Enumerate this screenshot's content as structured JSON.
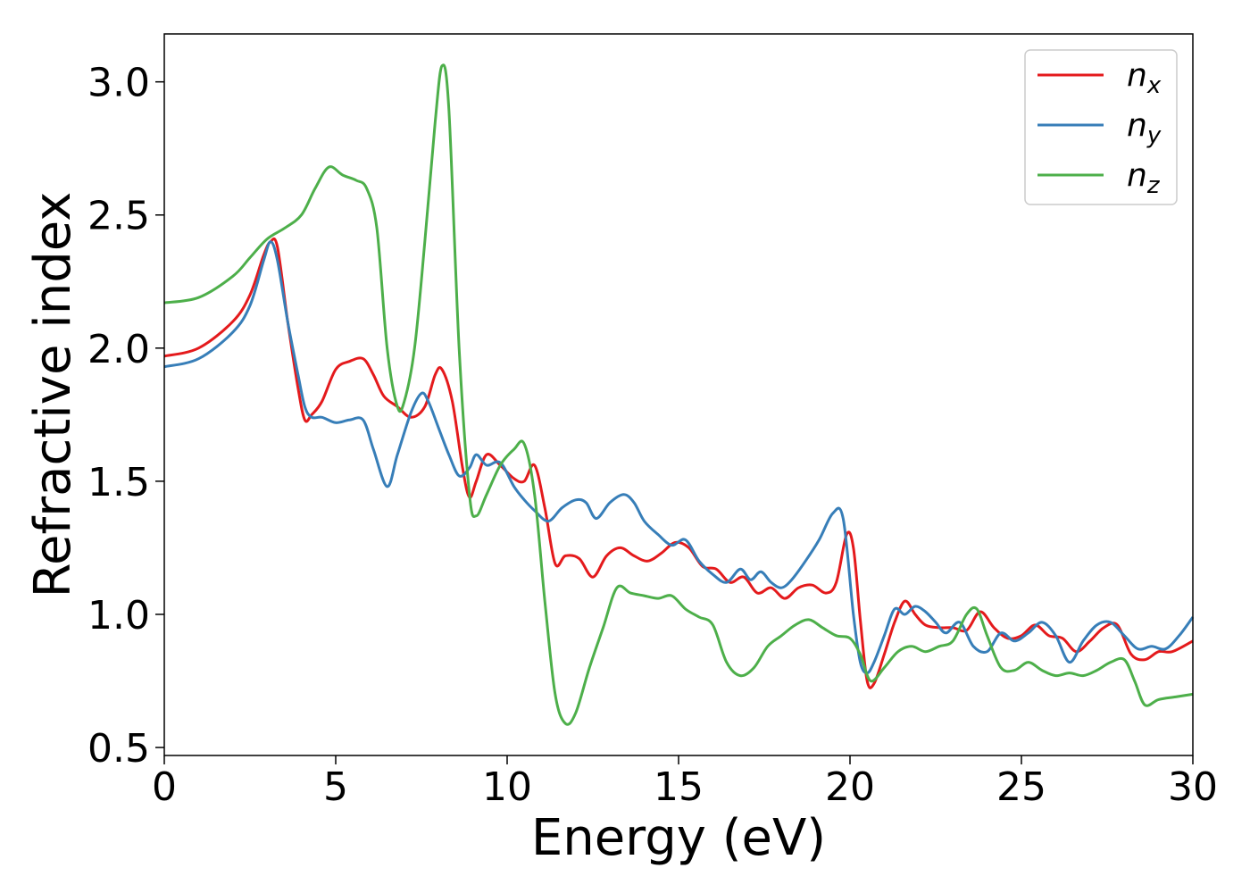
{
  "chart_data": {
    "type": "line",
    "title": "",
    "xlabel": "Energy (eV)",
    "ylabel": "Refractive index",
    "xlim": [
      0,
      30
    ],
    "ylim": [
      0.47,
      3.18
    ],
    "xticks": [
      0,
      5,
      10,
      15,
      20,
      25,
      30
    ],
    "yticks": [
      0.5,
      1.0,
      1.5,
      2.0,
      2.5,
      3.0
    ],
    "xtick_labels": [
      "0",
      "5",
      "10",
      "15",
      "20",
      "25",
      "30"
    ],
    "ytick_labels": [
      "0.5",
      "1.0",
      "1.5",
      "2.0",
      "2.5",
      "3.0"
    ],
    "grid": false,
    "legend": "top-right",
    "series": [
      {
        "name": "n",
        "subscript": "x",
        "color": "#e41a1c",
        "x": [
          0,
          1,
          2,
          2.5,
          2.9,
          3.1,
          3.3,
          3.6,
          3.9,
          4.1,
          4.3,
          4.6,
          5.0,
          5.4,
          5.8,
          6.1,
          6.4,
          6.8,
          7.2,
          7.6,
          7.9,
          8.1,
          8.4,
          8.7,
          8.9,
          9.1,
          9.4,
          9.8,
          10.2,
          10.5,
          10.8,
          11.1,
          11.4,
          11.7,
          12.1,
          12.5,
          12.9,
          13.3,
          13.7,
          14.1,
          14.5,
          14.9,
          15.3,
          15.7,
          16.1,
          16.5,
          16.9,
          17.3,
          17.7,
          18.1,
          18.5,
          18.9,
          19.3,
          19.6,
          19.9,
          20.1,
          20.3,
          20.5,
          20.7,
          21.0,
          21.3,
          21.6,
          21.9,
          22.2,
          22.6,
          23.0,
          23.4,
          23.8,
          24.2,
          24.6,
          25.0,
          25.4,
          25.8,
          26.2,
          26.6,
          27.0,
          27.4,
          27.8,
          28.2,
          28.6,
          29.0,
          29.4,
          30.0
        ],
        "y": [
          1.97,
          2.0,
          2.1,
          2.2,
          2.35,
          2.4,
          2.38,
          2.1,
          1.85,
          1.73,
          1.75,
          1.8,
          1.92,
          1.95,
          1.96,
          1.9,
          1.82,
          1.78,
          1.74,
          1.78,
          1.9,
          1.92,
          1.8,
          1.55,
          1.44,
          1.5,
          1.6,
          1.56,
          1.51,
          1.5,
          1.56,
          1.4,
          1.19,
          1.22,
          1.21,
          1.14,
          1.22,
          1.25,
          1.22,
          1.2,
          1.23,
          1.27,
          1.25,
          1.18,
          1.17,
          1.12,
          1.14,
          1.08,
          1.1,
          1.06,
          1.1,
          1.11,
          1.08,
          1.12,
          1.3,
          1.25,
          0.98,
          0.75,
          0.74,
          0.85,
          0.97,
          1.05,
          1.0,
          0.96,
          0.95,
          0.95,
          0.94,
          1.01,
          0.95,
          0.91,
          0.92,
          0.96,
          0.92,
          0.91,
          0.86,
          0.9,
          0.95,
          0.96,
          0.85,
          0.83,
          0.86,
          0.86,
          0.9
        ]
      },
      {
        "name": "n",
        "subscript": "y",
        "color": "#377eb8",
        "x": [
          0,
          1,
          2,
          2.5,
          2.9,
          3.1,
          3.3,
          3.6,
          3.9,
          4.1,
          4.3,
          4.6,
          5.0,
          5.4,
          5.8,
          6.1,
          6.5,
          6.8,
          7.2,
          7.5,
          7.7,
          8.0,
          8.3,
          8.6,
          8.9,
          9.1,
          9.4,
          9.8,
          10.2,
          10.5,
          10.8,
          11.2,
          11.6,
          12.0,
          12.3,
          12.6,
          13.0,
          13.4,
          13.7,
          14.0,
          14.4,
          14.8,
          15.2,
          15.6,
          16.0,
          16.4,
          16.8,
          17.1,
          17.4,
          17.7,
          18.0,
          18.3,
          18.7,
          19.1,
          19.5,
          19.8,
          20.1,
          20.3,
          20.5,
          20.7,
          21.0,
          21.3,
          21.6,
          21.9,
          22.2,
          22.5,
          22.8,
          23.2,
          23.6,
          24.0,
          24.4,
          24.8,
          25.2,
          25.6,
          26.0,
          26.4,
          26.8,
          27.2,
          27.6,
          28.0,
          28.4,
          28.8,
          29.2,
          29.6,
          30.0
        ],
        "y": [
          1.93,
          1.96,
          2.06,
          2.16,
          2.33,
          2.4,
          2.33,
          2.1,
          1.9,
          1.78,
          1.74,
          1.74,
          1.72,
          1.73,
          1.73,
          1.62,
          1.48,
          1.6,
          1.76,
          1.83,
          1.8,
          1.7,
          1.6,
          1.52,
          1.55,
          1.6,
          1.56,
          1.57,
          1.48,
          1.43,
          1.39,
          1.35,
          1.4,
          1.43,
          1.42,
          1.36,
          1.42,
          1.45,
          1.42,
          1.35,
          1.3,
          1.26,
          1.28,
          1.2,
          1.15,
          1.12,
          1.17,
          1.13,
          1.16,
          1.12,
          1.1,
          1.13,
          1.2,
          1.28,
          1.38,
          1.36,
          1.0,
          0.82,
          0.78,
          0.82,
          0.92,
          1.02,
          1.0,
          1.03,
          1.01,
          0.97,
          0.93,
          0.97,
          0.88,
          0.86,
          0.93,
          0.9,
          0.93,
          0.97,
          0.92,
          0.82,
          0.9,
          0.96,
          0.97,
          0.92,
          0.87,
          0.88,
          0.87,
          0.92,
          0.99
        ]
      },
      {
        "name": "n",
        "subscript": "z",
        "color": "#4daf4a",
        "x": [
          0,
          1,
          2,
          2.5,
          3.0,
          3.5,
          4.0,
          4.4,
          4.8,
          5.2,
          5.6,
          5.9,
          6.2,
          6.5,
          6.8,
          7.0,
          7.3,
          7.6,
          7.9,
          8.1,
          8.3,
          8.6,
          8.9,
          9.1,
          9.4,
          9.8,
          10.2,
          10.5,
          10.8,
          11.1,
          11.4,
          11.7,
          12.0,
          12.4,
          12.8,
          13.2,
          13.6,
          14.0,
          14.4,
          14.8,
          15.2,
          15.6,
          16.0,
          16.4,
          16.8,
          17.2,
          17.6,
          18.0,
          18.4,
          18.8,
          19.2,
          19.6,
          20.0,
          20.3,
          20.6,
          21.0,
          21.4,
          21.8,
          22.2,
          22.6,
          23.0,
          23.4,
          23.7,
          24.0,
          24.4,
          24.8,
          25.2,
          25.6,
          26.0,
          26.4,
          26.8,
          27.2,
          27.6,
          28.0,
          28.3,
          28.6,
          29.0,
          29.5,
          30.0
        ],
        "y": [
          2.17,
          2.19,
          2.27,
          2.34,
          2.41,
          2.45,
          2.5,
          2.6,
          2.68,
          2.65,
          2.63,
          2.6,
          2.45,
          2.0,
          1.78,
          1.8,
          2.0,
          2.4,
          2.85,
          3.06,
          2.9,
          2.0,
          1.45,
          1.37,
          1.45,
          1.56,
          1.62,
          1.64,
          1.45,
          1.05,
          0.7,
          0.59,
          0.63,
          0.8,
          0.95,
          1.1,
          1.08,
          1.07,
          1.06,
          1.07,
          1.02,
          0.99,
          0.96,
          0.82,
          0.77,
          0.8,
          0.88,
          0.92,
          0.96,
          0.98,
          0.95,
          0.92,
          0.91,
          0.85,
          0.75,
          0.8,
          0.86,
          0.88,
          0.86,
          0.88,
          0.9,
          1.0,
          1.02,
          0.92,
          0.8,
          0.79,
          0.82,
          0.79,
          0.77,
          0.78,
          0.77,
          0.79,
          0.82,
          0.83,
          0.75,
          0.66,
          0.68,
          0.69,
          0.7
        ]
      }
    ]
  }
}
